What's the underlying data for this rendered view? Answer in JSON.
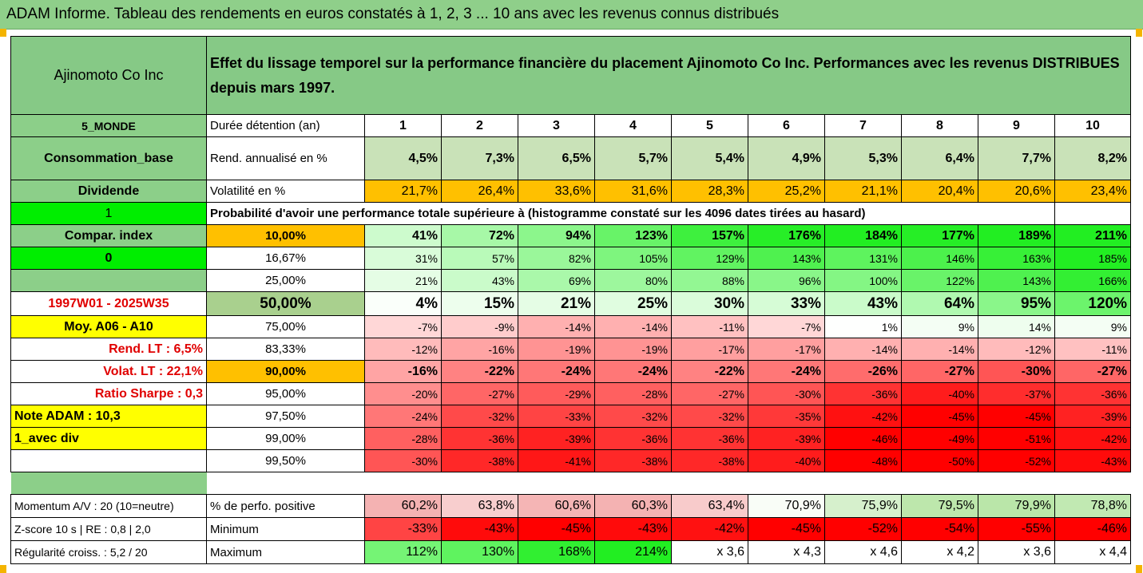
{
  "title": "ADAM Informe. Tableau des rendements en euros constatés à 1, 2, 3 ... 10 ans avec les revenus connus distribués",
  "company": "Ajinomoto Co Inc",
  "description": "Effet du lissage temporel sur la performance financière du placement Ajinomoto Co Inc. Performances avec les revenus DISTRIBUES depuis mars 1997.",
  "left": {
    "region": "5_MONDE",
    "sector": "Consommation_base",
    "type": "Dividende",
    "flag1": "1",
    "compar": "Compar. index",
    "flag0": "0",
    "period": "1997W01 - 2025W35",
    "moy": "Moy. A06 - A10",
    "rend_lt": "Rend. LT :   6,5%",
    "volat_lt": "Volat. LT :   22,1%",
    "sharpe": "Ratio Sharpe :   0,3",
    "note": "Note ADAM : 10,3",
    "avec_div": "1_avec div",
    "momentum": "Momentum A/V : 20 (10=neutre)",
    "zscore": "Z-score 10 s  |  RE : 0,8  |  2,0",
    "regularite": "Régularité croiss. : 5,2 / 20"
  },
  "header": {
    "label": "Durée détention (an)",
    "years": [
      "1",
      "2",
      "3",
      "4",
      "5",
      "6",
      "7",
      "8",
      "9",
      "10"
    ]
  },
  "rend": {
    "label": "Rend. annualisé en %",
    "values": [
      "4,5%",
      "7,3%",
      "6,5%",
      "5,7%",
      "5,4%",
      "4,9%",
      "5,3%",
      "6,4%",
      "7,7%",
      "8,2%"
    ]
  },
  "vol": {
    "label": "Volatilité en %",
    "values": [
      "21,7%",
      "26,4%",
      "33,6%",
      "31,6%",
      "28,3%",
      "25,2%",
      "21,1%",
      "20,4%",
      "20,6%",
      "23,4%"
    ]
  },
  "proba_label": "Probabilité d'avoir une performance totale supérieure à (histogramme constaté sur les 4096 dates tirées au hasard)",
  "quantiles": [
    {
      "p": "10,00%",
      "values": [
        "41%",
        "72%",
        "94%",
        "123%",
        "157%",
        "176%",
        "184%",
        "177%",
        "189%",
        "211%"
      ]
    },
    {
      "p": "16,67%",
      "values": [
        "31%",
        "57%",
        "82%",
        "105%",
        "129%",
        "143%",
        "131%",
        "146%",
        "163%",
        "185%"
      ]
    },
    {
      "p": "25,00%",
      "values": [
        "21%",
        "43%",
        "69%",
        "80%",
        "88%",
        "96%",
        "100%",
        "122%",
        "143%",
        "166%"
      ]
    },
    {
      "p": "50,00%",
      "values": [
        "4%",
        "15%",
        "21%",
        "25%",
        "30%",
        "33%",
        "43%",
        "64%",
        "95%",
        "120%"
      ]
    },
    {
      "p": "75,00%",
      "values": [
        "-7%",
        "-9%",
        "-14%",
        "-14%",
        "-11%",
        "-7%",
        "1%",
        "9%",
        "14%",
        "9%"
      ]
    },
    {
      "p": "83,33%",
      "values": [
        "-12%",
        "-16%",
        "-19%",
        "-19%",
        "-17%",
        "-17%",
        "-14%",
        "-14%",
        "-12%",
        "-11%"
      ]
    },
    {
      "p": "90,00%",
      "values": [
        "-16%",
        "-22%",
        "-24%",
        "-24%",
        "-22%",
        "-24%",
        "-26%",
        "-27%",
        "-30%",
        "-27%"
      ]
    },
    {
      "p": "95,00%",
      "values": [
        "-20%",
        "-27%",
        "-29%",
        "-28%",
        "-27%",
        "-30%",
        "-36%",
        "-40%",
        "-37%",
        "-36%"
      ]
    },
    {
      "p": "97,50%",
      "values": [
        "-24%",
        "-32%",
        "-33%",
        "-32%",
        "-32%",
        "-35%",
        "-42%",
        "-45%",
        "-45%",
        "-39%"
      ]
    },
    {
      "p": "99,00%",
      "values": [
        "-28%",
        "-36%",
        "-39%",
        "-36%",
        "-36%",
        "-39%",
        "-46%",
        "-49%",
        "-51%",
        "-42%"
      ]
    },
    {
      "p": "99,50%",
      "values": [
        "-30%",
        "-38%",
        "-41%",
        "-38%",
        "-38%",
        "-40%",
        "-48%",
        "-50%",
        "-52%",
        "-43%"
      ]
    }
  ],
  "stats": [
    {
      "label": "% de perfo. positive",
      "values": [
        "60,2%",
        "63,8%",
        "60,6%",
        "60,3%",
        "63,4%",
        "70,9%",
        "75,9%",
        "79,5%",
        "79,9%",
        "78,8%"
      ]
    },
    {
      "label": "Minimum",
      "values": [
        "-33%",
        "-43%",
        "-45%",
        "-43%",
        "-42%",
        "-45%",
        "-52%",
        "-54%",
        "-55%",
        "-46%"
      ]
    },
    {
      "label": "Maximum",
      "values": [
        "112%",
        "130%",
        "168%",
        "214%",
        "x 3,6",
        "x 4,3",
        "x 4,6",
        "x 4,2",
        "x 3,6",
        "x 4,4"
      ]
    }
  ],
  "colors": {
    "header_green": "#86c986",
    "bright_green": "#00ee00",
    "yellow": "#ffff00",
    "orange": "#ffc000",
    "red_text": "#e00000"
  }
}
